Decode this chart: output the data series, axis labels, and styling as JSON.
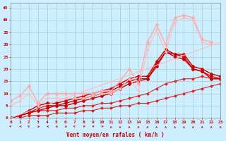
{
  "xlabel": "Vent moyen/en rafales ( km/h )",
  "bg_color": "#cceeff",
  "grid_color": "#aacccc",
  "x_ticks": [
    0,
    1,
    2,
    3,
    4,
    5,
    6,
    7,
    8,
    9,
    10,
    11,
    12,
    13,
    14,
    15,
    16,
    17,
    18,
    19,
    20,
    21,
    22,
    23
  ],
  "y_ticks": [
    0,
    5,
    10,
    15,
    20,
    25,
    30,
    35,
    40,
    45
  ],
  "xlim": [
    0,
    23
  ],
  "ylim": [
    0,
    47
  ],
  "series": [
    {
      "x": [
        0,
        1,
        2,
        3,
        4,
        5,
        6,
        7,
        8,
        9,
        10,
        11,
        12,
        13,
        14,
        15,
        16,
        17,
        18,
        19,
        20,
        21,
        22,
        23
      ],
      "y": [
        0,
        0,
        1,
        1,
        1,
        2,
        2,
        2,
        3,
        3,
        4,
        4,
        5,
        5,
        6,
        6,
        7,
        8,
        9,
        10,
        11,
        12,
        13,
        14
      ],
      "color": "#dd2222",
      "lw": 0.8,
      "marker": "D",
      "ms": 1.5
    },
    {
      "x": [
        0,
        1,
        2,
        3,
        4,
        5,
        6,
        7,
        8,
        9,
        10,
        11,
        12,
        13,
        14,
        15,
        16,
        17,
        18,
        19,
        20,
        21,
        22,
        23
      ],
      "y": [
        0,
        1,
        2,
        3,
        3,
        3,
        4,
        4,
        5,
        5,
        6,
        6,
        7,
        8,
        9,
        10,
        12,
        14,
        15,
        16,
        16,
        17,
        16,
        16
      ],
      "color": "#dd2222",
      "lw": 0.8,
      "marker": "D",
      "ms": 1.5
    },
    {
      "x": [
        0,
        1,
        2,
        3,
        4,
        5,
        6,
        7,
        8,
        9,
        10,
        11,
        12,
        13,
        14,
        15,
        16,
        17,
        18,
        19,
        20,
        21,
        22,
        23
      ],
      "y": [
        0,
        1,
        2,
        3,
        4,
        5,
        5,
        6,
        7,
        8,
        9,
        10,
        12,
        14,
        15,
        16,
        21,
        27,
        25,
        24,
        20,
        19,
        16,
        16
      ],
      "color": "#cc0000",
      "lw": 1.0,
      "marker": "D",
      "ms": 2.0
    },
    {
      "x": [
        0,
        1,
        2,
        3,
        4,
        5,
        6,
        7,
        8,
        9,
        10,
        11,
        12,
        13,
        14,
        15,
        16,
        17,
        18,
        19,
        20,
        21,
        22,
        23
      ],
      "y": [
        0,
        1,
        2,
        4,
        5,
        5,
        6,
        7,
        8,
        9,
        10,
        11,
        13,
        15,
        16,
        16,
        22,
        27,
        26,
        25,
        20,
        19,
        17,
        16
      ],
      "color": "#cc0000",
      "lw": 1.0,
      "marker": "D",
      "ms": 2.0
    },
    {
      "x": [
        0,
        1,
        2,
        3,
        4,
        5,
        6,
        7,
        8,
        9,
        10,
        11,
        12,
        13,
        14,
        15,
        16,
        17,
        18,
        19,
        20,
        21,
        22,
        23
      ],
      "y": [
        0,
        1,
        3,
        5,
        6,
        6,
        7,
        8,
        9,
        10,
        11,
        12,
        14,
        16,
        17,
        17,
        23,
        28,
        26,
        26,
        21,
        20,
        18,
        17
      ],
      "color": "#cc0000",
      "lw": 1.0,
      "marker": "D",
      "ms": 2.0
    },
    {
      "x": [
        0,
        1,
        2,
        3,
        4,
        5,
        6,
        7,
        8,
        9,
        10,
        11,
        12,
        13,
        14,
        15,
        16,
        17,
        18,
        19,
        20,
        21,
        22
      ],
      "y": [
        7,
        9,
        13,
        6,
        10,
        10,
        10,
        10,
        10,
        10,
        11,
        11,
        15,
        20,
        14,
        31,
        38,
        30,
        41,
        42,
        41,
        32,
        31
      ],
      "color": "#ffaaaa",
      "lw": 1.0,
      "marker": "D",
      "ms": 2.0
    },
    {
      "x": [
        0,
        1,
        2,
        3,
        4,
        5,
        6,
        7,
        8,
        9,
        10,
        11,
        12,
        13,
        14,
        15,
        16,
        17,
        18,
        19,
        20,
        21,
        22
      ],
      "y": [
        5,
        7,
        10,
        5,
        8,
        8,
        8,
        8,
        8,
        9,
        10,
        10,
        12,
        16,
        11,
        28,
        36,
        27,
        39,
        41,
        40,
        31,
        30
      ],
      "color": "#ffbbbb",
      "lw": 0.8,
      "marker": "D",
      "ms": 1.5
    },
    {
      "x": [
        0,
        23
      ],
      "y": [
        0,
        31
      ],
      "color": "#ffbbbb",
      "lw": 0.8,
      "marker": null,
      "ms": 0
    }
  ],
  "arrow_angles": [
    215,
    270,
    215,
    45,
    270,
    45,
    45,
    215,
    135,
    135,
    135,
    180,
    180,
    180,
    180,
    180,
    180,
    180,
    180,
    180,
    180,
    180,
    180,
    180
  ],
  "arrow_color": "#cc0000"
}
